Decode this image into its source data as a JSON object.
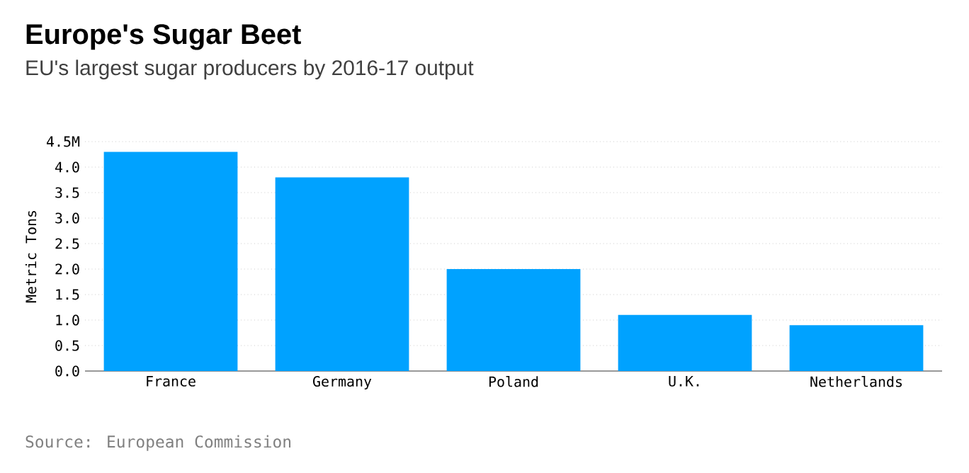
{
  "chart_data": {
    "type": "bar",
    "title": "Europe's Sugar Beet",
    "subtitle": "EU's largest sugar producers by 2016-17 output",
    "ylabel": "Metric Tons",
    "categories": [
      "France",
      "Germany",
      "Poland",
      "U.K.",
      "Netherlands"
    ],
    "values": [
      4.3,
      3.8,
      2.0,
      1.1,
      0.9
    ],
    "color": "#00a2ff",
    "ylim": [
      0,
      4.5
    ],
    "yticks": [
      {
        "value": 0,
        "label": "0.0"
      },
      {
        "value": 0.5,
        "label": "0.5"
      },
      {
        "value": 1,
        "label": "1.0"
      },
      {
        "value": 1.5,
        "label": "1.5"
      },
      {
        "value": 2,
        "label": "2.0"
      },
      {
        "value": 2.5,
        "label": "2.5"
      },
      {
        "value": 3,
        "label": "3.0"
      },
      {
        "value": 3.5,
        "label": "3.5"
      },
      {
        "value": 4,
        "label": "4.0"
      },
      {
        "value": 4.5,
        "label": "4.5M"
      }
    ],
    "grid": "y",
    "annotations": [
      "Source: European Commission"
    ]
  }
}
